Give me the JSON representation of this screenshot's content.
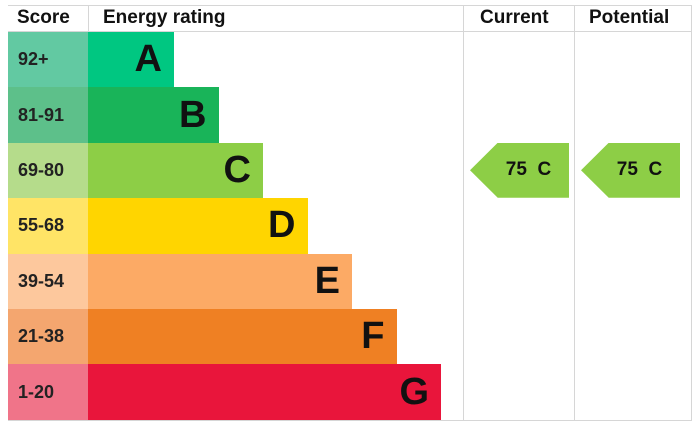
{
  "chart_data": {
    "type": "bar",
    "headers": {
      "score": "Score",
      "rating": "Energy rating",
      "current": "Current",
      "potential": "Potential"
    },
    "bands": [
      {
        "score": "92+",
        "letter": "A",
        "color": "#00c781",
        "light": "#62c9a2"
      },
      {
        "score": "81-91",
        "letter": "B",
        "color": "#19b459",
        "light": "#5dc08a"
      },
      {
        "score": "69-80",
        "letter": "C",
        "color": "#8dce46",
        "light": "#b5dc8b"
      },
      {
        "score": "55-68",
        "letter": "D",
        "color": "#ffd500",
        "light": "#ffe466"
      },
      {
        "score": "39-54",
        "letter": "E",
        "color": "#fcaa65",
        "light": "#fdc89d"
      },
      {
        "score": "21-38",
        "letter": "F",
        "color": "#ef8023",
        "light": "#f4a66f"
      },
      {
        "score": "1-20",
        "letter": "G",
        "color": "#e9153b",
        "light": "#f07489"
      }
    ],
    "current": {
      "value": 75,
      "letter": "C",
      "label": "75  C"
    },
    "potential": {
      "value": 75,
      "letter": "C",
      "label": "75  C"
    }
  }
}
